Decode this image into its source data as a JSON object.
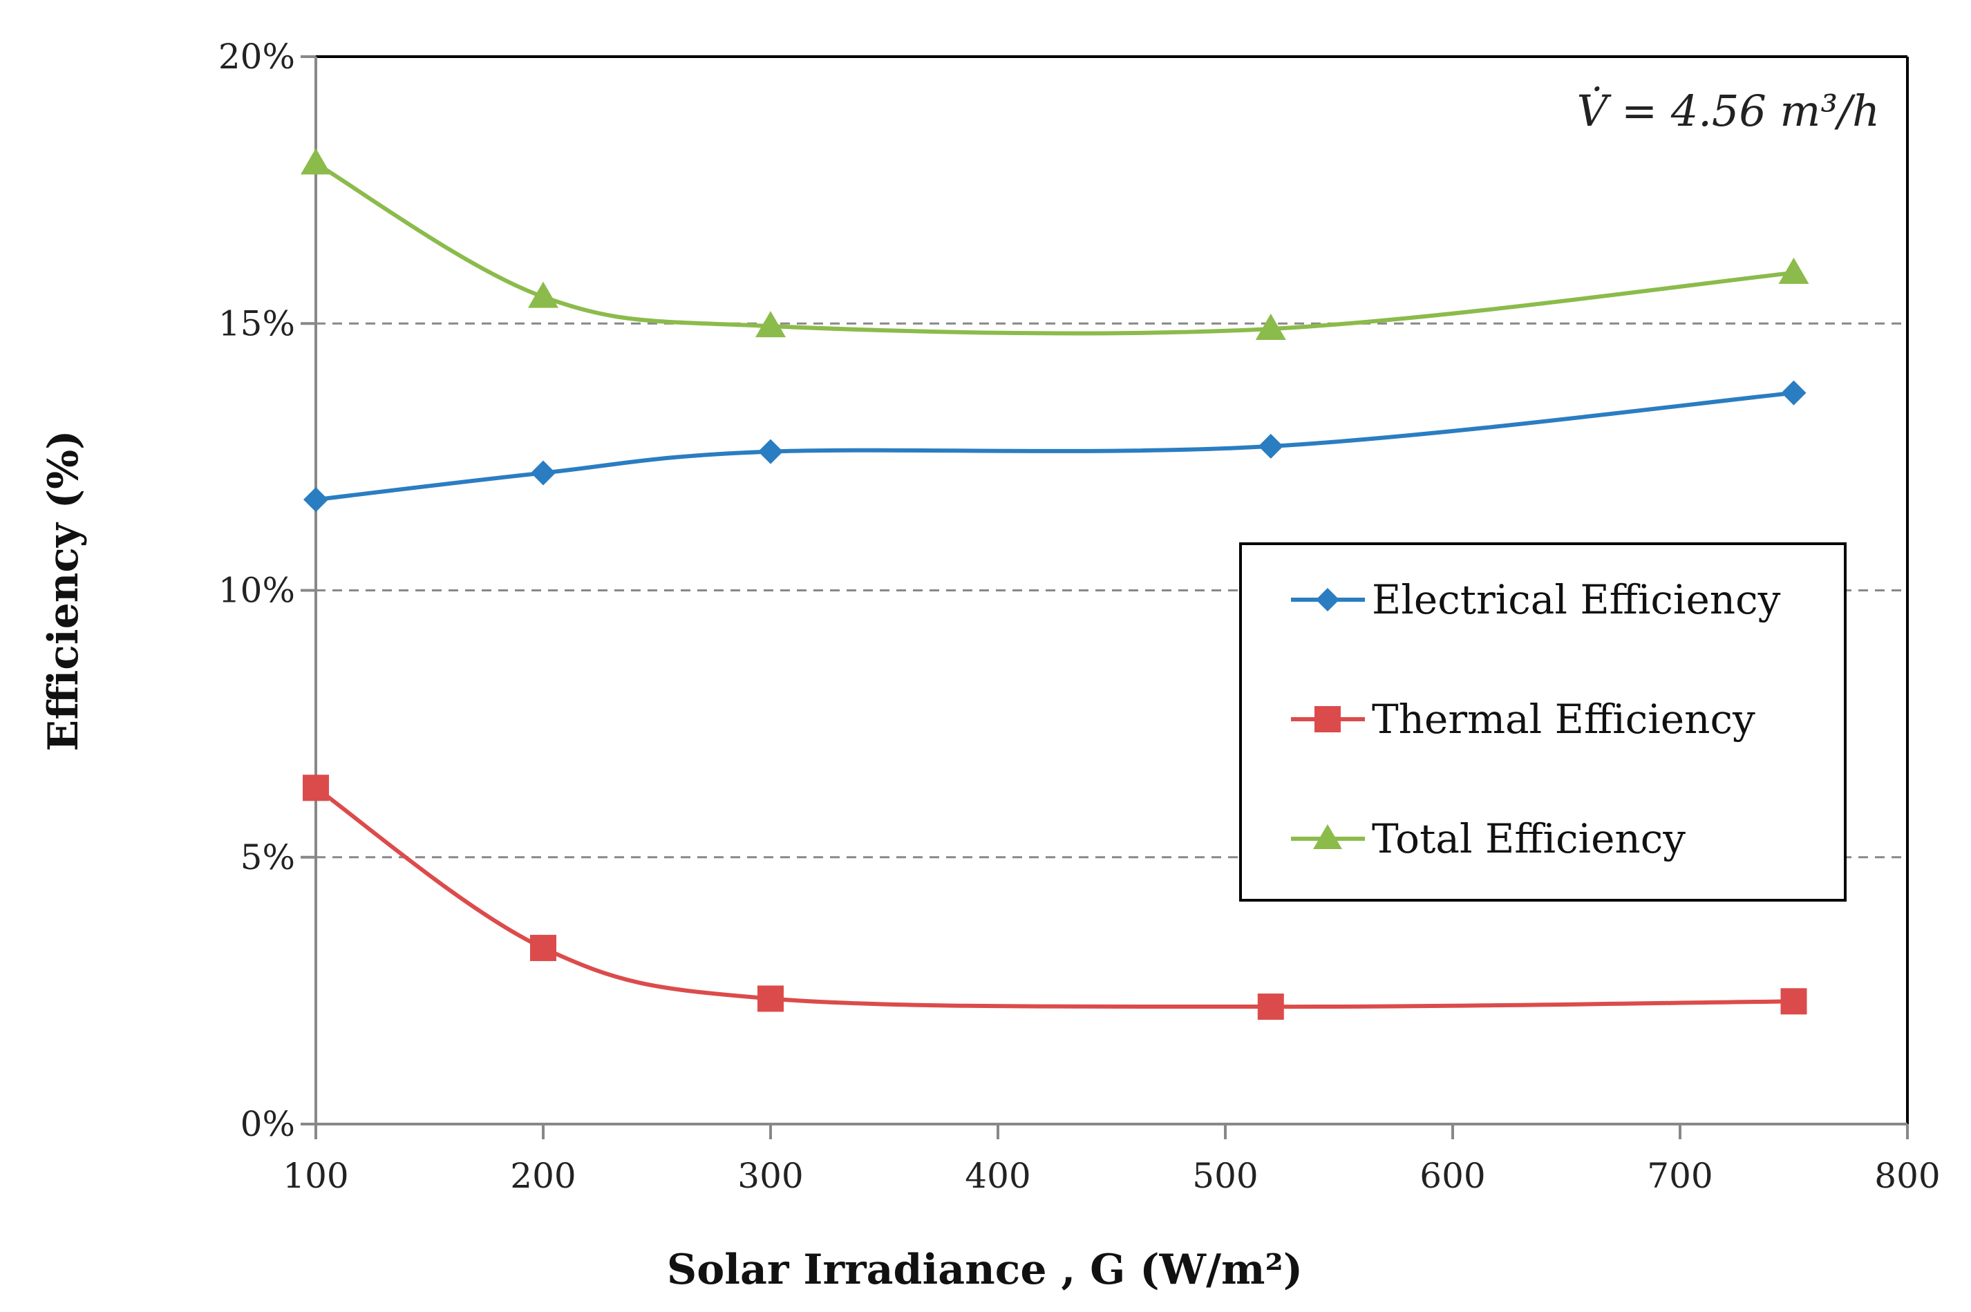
{
  "chart_data": {
    "type": "line",
    "title": "",
    "annotation": "V̇ = 4.56 m³/h",
    "xlabel": "Solar Irradiance , G (W/m²)",
    "ylabel": "Efficiency (%)",
    "xlim": [
      100,
      800
    ],
    "ylim": [
      0,
      20
    ],
    "xticks": [
      100,
      200,
      300,
      400,
      500,
      600,
      700,
      800
    ],
    "yticks": [
      0,
      5,
      10,
      15,
      20
    ],
    "ytick_labels": [
      "0%",
      "5%",
      "10%",
      "15%",
      "20%"
    ],
    "grid": "horizontal dashed",
    "legend_position": "right-center",
    "x": [
      100,
      200,
      300,
      520,
      750
    ],
    "series": [
      {
        "name": "Electrical Efficiency",
        "color": "#2a7dc1",
        "marker": "diamond",
        "values": [
          11.7,
          12.2,
          12.6,
          12.7,
          13.7
        ]
      },
      {
        "name": "Thermal Efficiency",
        "color": "#dc4b4b",
        "marker": "square",
        "values": [
          6.3,
          3.3,
          2.35,
          2.2,
          2.3
        ]
      },
      {
        "name": "Total Efficiency",
        "color": "#8bbb4b",
        "marker": "triangle",
        "values": [
          18.0,
          15.5,
          14.95,
          14.9,
          15.95
        ]
      }
    ]
  }
}
